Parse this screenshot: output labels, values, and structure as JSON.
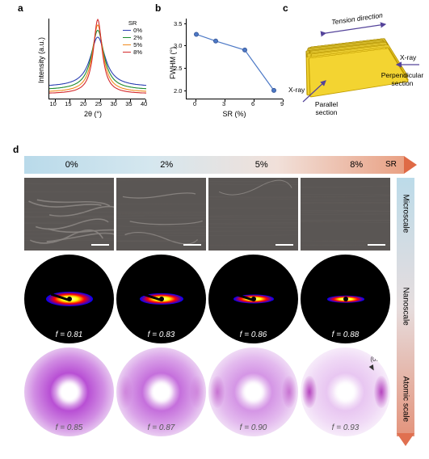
{
  "panels": {
    "a": "a",
    "b": "b",
    "c": "c",
    "d": "d"
  },
  "panel_a": {
    "type": "line",
    "xlabel": "2θ (°)",
    "ylabel": "Intensity (a.u.)",
    "xlim": [
      8,
      40
    ],
    "xticks": [
      10,
      15,
      20,
      25,
      30,
      35,
      40
    ],
    "legend_title": "SR",
    "legend_fontsize": 7.5,
    "label_fontsize": 9,
    "peak_center": 24,
    "series": [
      {
        "label": "0%",
        "color": "#2b3fb3",
        "peak_height": 0.65,
        "fwhm": 6.0,
        "baseline": 0.14
      },
      {
        "label": "2%",
        "color": "#1e8c2f",
        "peak_height": 0.78,
        "fwhm": 5.0,
        "baseline": 0.1
      },
      {
        "label": "5%",
        "color": "#f08a1d",
        "peak_height": 0.88,
        "fwhm": 4.2,
        "baseline": 0.07
      },
      {
        "label": "8%",
        "color": "#d4292b",
        "peak_height": 0.97,
        "fwhm": 3.5,
        "baseline": 0.05
      }
    ]
  },
  "panel_b": {
    "type": "line-marker",
    "xlabel": "SR (%)",
    "ylabel": "FWHM (°)",
    "xlim": [
      -1,
      9
    ],
    "ylim": [
      1.8,
      3.6
    ],
    "xticks": [
      0,
      3,
      6,
      9
    ],
    "yticks": [
      2.0,
      2.5,
      3.0,
      3.5
    ],
    "label_fontsize": 9,
    "tick_fontsize": 7.5,
    "marker": "circle",
    "marker_size": 5,
    "marker_fill": "#4d79c6",
    "marker_edge": "#3a5a9c",
    "line_color": "#4d79c6",
    "line_width": 1.2,
    "points": [
      {
        "x": 0,
        "y": 3.25
      },
      {
        "x": 2,
        "y": 3.1
      },
      {
        "x": 5,
        "y": 2.9
      },
      {
        "x": 8,
        "y": 2.0
      }
    ]
  },
  "panel_c": {
    "type": "infographic",
    "sheet_color": "#e9cb2f",
    "sheet_edge": "#b99600",
    "arrow_color": "#54439a",
    "sheet_count": 12,
    "tension_label": "Tension direction",
    "xray_label": "X-ray",
    "parallel_label": "Parallel section",
    "perpendicular_label": "Perpendicular section",
    "annot_fontsize": 8.5
  },
  "panel_d": {
    "type": "image-grid",
    "sr_values": [
      "0%",
      "2%",
      "5%",
      "8%"
    ],
    "sr_label": "SR",
    "sr_gradient": [
      "#b9daea",
      "#d5e7ef",
      "#f1e0d9",
      "#e9a184"
    ],
    "sr_arrow_color": "#df6a46",
    "side_labels": [
      "Microscale",
      "Nanoscale",
      "Atomic scale"
    ],
    "side_gradient": [
      "#bcdbe9",
      "#e6ddde",
      "#e4947c"
    ],
    "side_arrow_color": "#e07050",
    "micro": {
      "background": "#5a5654",
      "scalebar_color": "#ffffff",
      "wrinkle_color": "#8b8683"
    },
    "nano": {
      "background": "#000000",
      "f_label_color": "#ffffff",
      "f_values": [
        "f = 0.81",
        "f = 0.83",
        "f = 0.86",
        "f = 0.88"
      ],
      "ellipse_aspect": [
        3.2,
        3.8,
        4.5,
        5.4
      ],
      "ellipse_width": [
        58,
        54,
        50,
        46
      ],
      "gradient_colors": [
        "#ffffff",
        "#ffff00",
        "#ff0000",
        "#0000ff",
        "#000000"
      ]
    },
    "atomic": {
      "f_label_color": "#555555",
      "f_values": [
        "f = 0.85",
        "f = 0.87",
        "f = 0.90",
        "f = 0.93"
      ],
      "ring_color": "#b84fd4",
      "background_saturation": [
        1.0,
        0.82,
        0.6,
        0.32
      ],
      "lobe_opacity": [
        0.0,
        0.25,
        0.5,
        0.85
      ],
      "peak_label": "(002)"
    }
  }
}
